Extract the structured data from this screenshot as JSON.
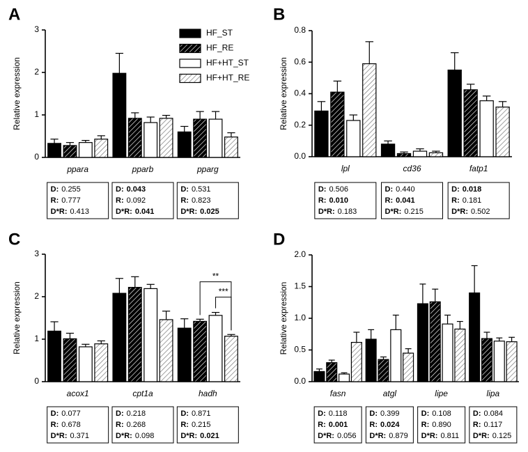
{
  "chart_data": [
    {
      "type": "bar",
      "panel_label": "A",
      "y_label": "Relative expression",
      "categories": [
        "ppara",
        "pparb",
        "pparg"
      ],
      "ylim": [
        0,
        3
      ],
      "yticks": [
        0,
        1,
        2,
        3
      ],
      "series": [
        {
          "name": "HF_ST",
          "color": "#000000",
          "pattern": "solid",
          "values": [
            0.33,
            1.98,
            0.6
          ],
          "errors": [
            0.1,
            0.47,
            0.13
          ]
        },
        {
          "name": "HF_RE",
          "color": "#000000",
          "pattern": "hatch",
          "values": [
            0.28,
            0.92,
            0.9
          ],
          "errors": [
            0.07,
            0.13,
            0.18
          ]
        },
        {
          "name": "HF+HT_ST",
          "color": "#ffffff",
          "pattern": "solid",
          "values": [
            0.35,
            0.82,
            0.9
          ],
          "errors": [
            0.05,
            0.13,
            0.18
          ]
        },
        {
          "name": "HF+HT_RE",
          "color": "#ffffff",
          "pattern": "hatch",
          "values": [
            0.43,
            0.92,
            0.48
          ],
          "errors": [
            0.08,
            0.07,
            0.1
          ]
        }
      ],
      "stat_labels": [
        "D:",
        "R:",
        "D*R:"
      ],
      "stats": [
        [
          0.255,
          0.777,
          0.413
        ],
        [
          0.043,
          0.092,
          0.041
        ],
        [
          0.531,
          0.823,
          0.025
        ]
      ],
      "stats_bold": [
        [
          false,
          false,
          false
        ],
        [
          true,
          false,
          true
        ],
        [
          false,
          false,
          true
        ]
      ]
    },
    {
      "type": "bar",
      "panel_label": "B",
      "y_label": "Relative expression",
      "categories": [
        "lpl",
        "cd36",
        "fatp1"
      ],
      "ylim": [
        0,
        0.8
      ],
      "yticks": [
        {
          "value": 0,
          "label": "0.0"
        },
        0.2,
        0.4,
        0.6,
        0.8
      ],
      "series": [
        {
          "color": "#000000",
          "pattern": "solid",
          "values": [
            0.29,
            0.08,
            0.55
          ],
          "errors": [
            0.06,
            0.02,
            0.11
          ]
        },
        {
          "color": "#000000",
          "pattern": "hatch",
          "values": [
            0.41,
            0.02,
            0.425
          ],
          "errors": [
            0.07,
            0.01,
            0.035
          ]
        },
        {
          "color": "#ffffff",
          "pattern": "solid",
          "values": [
            0.23,
            0.035,
            0.355
          ],
          "errors": [
            0.035,
            0.015,
            0.03
          ]
        },
        {
          "color": "#ffffff",
          "pattern": "hatch",
          "values": [
            0.59,
            0.025,
            0.315
          ],
          "errors": [
            0.14,
            0.01,
            0.035
          ]
        }
      ],
      "stat_labels": [
        "D:",
        "R:",
        "D*R:"
      ],
      "stats": [
        [
          0.506,
          {
            "value": 0.01,
            "label": "0.010"
          },
          0.183
        ],
        [
          {
            "value": 0.44,
            "label": "0.440"
          },
          0.041,
          0.215
        ],
        [
          0.018,
          0.181,
          0.502
        ]
      ],
      "stats_bold": [
        [
          false,
          true,
          false
        ],
        [
          false,
          true,
          false
        ],
        [
          true,
          false,
          false
        ]
      ]
    },
    {
      "type": "bar",
      "panel_label": "C",
      "y_label": "Relative expression",
      "categories": [
        "acox1",
        "cpt1a",
        "hadh"
      ],
      "ylim": [
        0,
        3
      ],
      "yticks": [
        0,
        1,
        2,
        3
      ],
      "series": [
        {
          "color": "#000000",
          "pattern": "solid",
          "values": [
            1.19,
            2.08,
            1.26
          ],
          "errors": [
            0.22,
            0.35,
            0.22
          ]
        },
        {
          "color": "#000000",
          "pattern": "hatch",
          "values": [
            1.01,
            2.22,
            1.42
          ],
          "errors": [
            0.13,
            0.25,
            0.05
          ]
        },
        {
          "color": "#ffffff",
          "pattern": "solid",
          "values": [
            0.82,
            2.19,
            1.56
          ],
          "errors": [
            0.06,
            0.1,
            0.07
          ]
        },
        {
          "color": "#ffffff",
          "pattern": "hatch",
          "values": [
            0.89,
            1.46,
            1.07
          ],
          "errors": [
            0.07,
            0.2,
            0.04
          ]
        }
      ],
      "annotations": [
        {
          "text": "**",
          "category": 2,
          "series": [
            1,
            3
          ]
        },
        {
          "text": "***",
          "category": 2,
          "series": [
            2,
            3
          ]
        }
      ],
      "stat_labels": [
        "D:",
        "R:",
        "D*R:"
      ],
      "stats": [
        [
          0.077,
          0.678,
          0.371
        ],
        [
          0.218,
          0.268,
          0.098
        ],
        [
          0.871,
          0.215,
          0.021
        ]
      ],
      "stats_bold": [
        [
          false,
          false,
          false
        ],
        [
          false,
          false,
          false
        ],
        [
          false,
          false,
          true
        ]
      ]
    },
    {
      "type": "bar",
      "panel_label": "D",
      "y_label": "Relative expression",
      "categories": [
        "fasn",
        "atgl",
        "lipe",
        "lipa"
      ],
      "ylim": [
        0,
        2
      ],
      "yticks": [
        {
          "value": 0,
          "label": "0.0"
        },
        0.5,
        {
          "value": 1,
          "label": "1.0"
        },
        1.5,
        {
          "value": 2,
          "label": "2.0"
        }
      ],
      "series": [
        {
          "color": "#000000",
          "pattern": "solid",
          "values": [
            0.16,
            0.67,
            1.23,
            1.4
          ],
          "errors": [
            0.04,
            0.15,
            0.31,
            0.43
          ]
        },
        {
          "color": "#000000",
          "pattern": "hatch",
          "values": [
            0.3,
            0.35,
            1.26,
            0.68
          ],
          "errors": [
            0.04,
            0.04,
            0.2,
            0.1
          ]
        },
        {
          "color": "#ffffff",
          "pattern": "solid",
          "values": [
            0.12,
            0.82,
            0.91,
            0.64
          ],
          "errors": [
            0.02,
            0.23,
            0.14,
            0.05
          ]
        },
        {
          "color": "#ffffff",
          "pattern": "hatch",
          "values": [
            0.62,
            0.45,
            0.83,
            0.63
          ],
          "errors": [
            0.16,
            0.07,
            0.12,
            0.07
          ]
        }
      ],
      "stat_labels": [
        "D:",
        "R:",
        "D*R:"
      ],
      "stats": [
        [
          0.118,
          0.001,
          0.056
        ],
        [
          0.399,
          0.024,
          0.879
        ],
        [
          0.108,
          {
            "value": 0.89,
            "label": "0.890"
          },
          0.811
        ],
        [
          0.084,
          0.117,
          0.125
        ]
      ],
      "stats_bold": [
        [
          false,
          true,
          false
        ],
        [
          false,
          true,
          false
        ],
        [
          false,
          false,
          false
        ],
        [
          false,
          false,
          false
        ]
      ]
    }
  ]
}
